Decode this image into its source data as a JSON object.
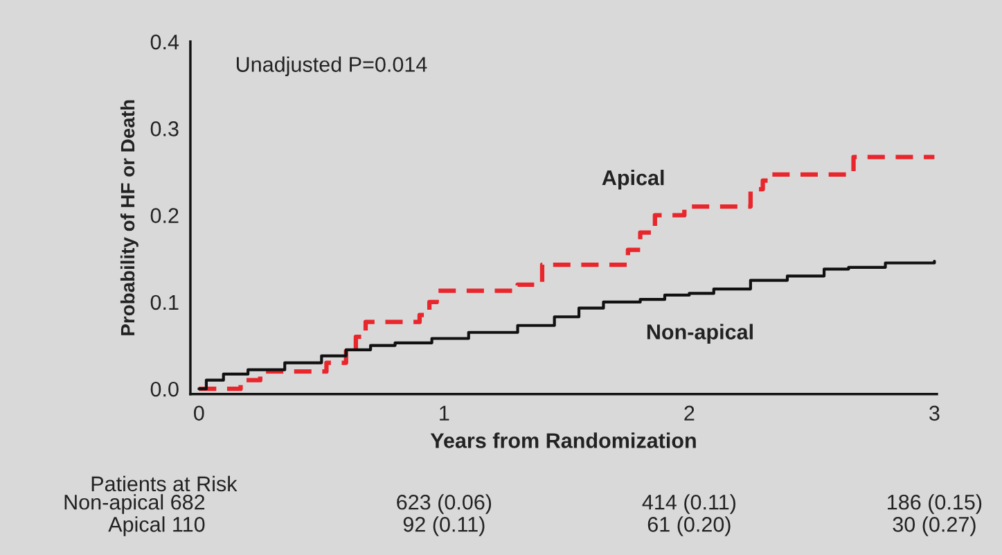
{
  "chart_data": {
    "type": "step",
    "xlabel": "Years from Randomization",
    "ylabel": "Probability of HF or Death",
    "xlim": [
      -0.035,
      3.01
    ],
    "ylim": [
      -0.006,
      0.4
    ],
    "xticks": [
      0,
      1,
      2,
      3
    ],
    "yticks": [
      {
        "value": 0,
        "label": "0.0"
      },
      {
        "value": 0.1,
        "label": "0.1"
      },
      {
        "value": 0.2,
        "label": "0.2"
      },
      {
        "value": 0.3,
        "label": "0.3"
      },
      {
        "value": 0.4,
        "label": "0.4"
      }
    ],
    "grid": false,
    "legend": false,
    "series": [
      {
        "name": "Apical",
        "color": "#e8262c",
        "line_style": "dashed",
        "x": [
          0,
          0.17,
          0.25,
          0.52,
          0.6,
          0.64,
          0.68,
          0.9,
          0.94,
          0.97,
          1.3,
          1.4,
          1.75,
          1.8,
          1.86,
          1.98,
          2.25,
          2.3,
          2.33,
          2.67,
          3.0
        ],
        "values": [
          0,
          0.01,
          0.02,
          0.03,
          0.045,
          0.06,
          0.077,
          0.085,
          0.1,
          0.113,
          0.12,
          0.143,
          0.16,
          0.18,
          0.2,
          0.21,
          0.23,
          0.24,
          0.247,
          0.267,
          0.267
        ]
      },
      {
        "name": "Non-apical",
        "color": "#111111",
        "line_style": "solid",
        "x": [
          0,
          0.03,
          0.1,
          0.2,
          0.35,
          0.5,
          0.6,
          0.7,
          0.8,
          0.95,
          1.1,
          1.3,
          1.45,
          1.55,
          1.65,
          1.8,
          1.9,
          2.0,
          2.1,
          2.25,
          2.4,
          2.55,
          2.65,
          2.8,
          3.0
        ],
        "values": [
          0,
          0.01,
          0.017,
          0.022,
          0.03,
          0.038,
          0.045,
          0.05,
          0.053,
          0.058,
          0.065,
          0.073,
          0.083,
          0.093,
          0.1,
          0.103,
          0.108,
          0.11,
          0.115,
          0.125,
          0.13,
          0.138,
          0.14,
          0.145,
          0.147
        ]
      }
    ],
    "annotations": [
      "Unadjusted P=0.014",
      "Patients at Risk",
      "Non-apical 682",
      "623 (0.06)",
      "414 (0.11)",
      "186 (0.15)",
      "Apical 110",
      "92 (0.11)",
      "61 (0.20)",
      "30 (0.27)"
    ]
  }
}
